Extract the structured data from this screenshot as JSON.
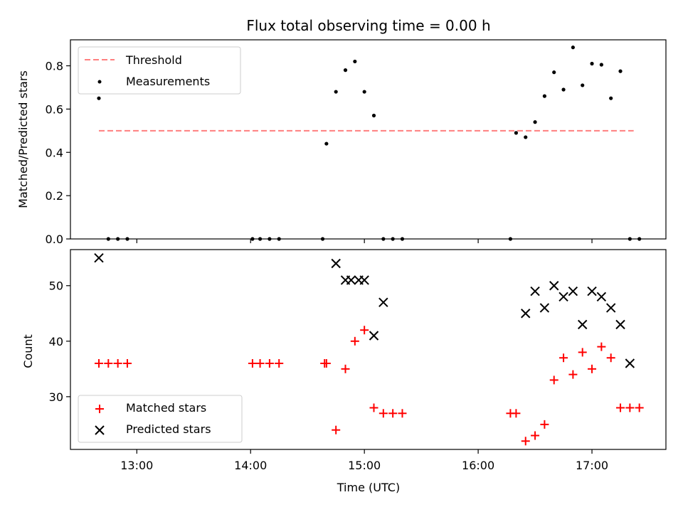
{
  "chart_data": [
    {
      "type": "scatter",
      "title": "Flux total observing time = 0.00 h",
      "ylabel": "Matched/Predicted stars",
      "xlabel": "",
      "xlim": [
        "12:25",
        "17:39"
      ],
      "ylim": [
        0,
        0.92
      ],
      "yticks": [
        0.0,
        0.2,
        0.4,
        0.6,
        0.8
      ],
      "ytick_labels": [
        "0.0",
        "0.2",
        "0.4",
        "0.6",
        "0.8"
      ],
      "xticks": [
        "13:00",
        "14:00",
        "15:00",
        "16:00",
        "17:00"
      ],
      "grid": false,
      "legend_position": "top-left",
      "series": [
        {
          "name": "Threshold",
          "style": "dashed-line",
          "color": "#ff7f7f",
          "x": [
            "12:40",
            "17:22"
          ],
          "y": [
            0.5,
            0.5
          ]
        },
        {
          "name": "Measurements",
          "style": "dot",
          "color": "#000000",
          "x": [
            "12:40",
            "12:45",
            "12:50",
            "12:55",
            "14:01",
            "14:05",
            "14:10",
            "14:15",
            "14:38",
            "14:40",
            "14:45",
            "14:50",
            "14:55",
            "15:00",
            "15:05",
            "15:10",
            "15:15",
            "15:20",
            "16:17",
            "16:20",
            "16:25",
            "16:30",
            "16:35",
            "16:40",
            "16:45",
            "16:50",
            "16:55",
            "17:00",
            "17:05",
            "17:10",
            "17:15",
            "17:20",
            "17:25"
          ],
          "y": [
            0.65,
            0.0,
            0.0,
            0.0,
            0.0,
            0.0,
            0.0,
            0.0,
            0.0,
            0.44,
            0.68,
            0.78,
            0.82,
            0.68,
            0.57,
            0.0,
            0.0,
            0.0,
            0.0,
            0.49,
            0.47,
            0.54,
            0.66,
            0.77,
            0.69,
            0.885,
            0.71,
            0.81,
            0.805,
            0.65,
            0.775,
            0.0,
            0.0
          ]
        }
      ]
    },
    {
      "type": "scatter",
      "title": "",
      "ylabel": "Count",
      "xlabel": "Time (UTC)",
      "xlim": [
        "12:25",
        "17:39"
      ],
      "ylim": [
        20.5,
        56.5
      ],
      "yticks": [
        30,
        40,
        50
      ],
      "ytick_labels": [
        "30",
        "40",
        "50"
      ],
      "xticks": [
        "13:00",
        "14:00",
        "15:00",
        "16:00",
        "17:00"
      ],
      "grid": false,
      "legend_position": "bottom-left",
      "series": [
        {
          "name": "Matched stars",
          "style": "plus",
          "color": "#ff0000",
          "x": [
            "12:40",
            "12:45",
            "12:50",
            "12:55",
            "14:01",
            "14:05",
            "14:10",
            "14:15",
            "14:39",
            "14:40",
            "14:45",
            "14:50",
            "14:55",
            "15:00",
            "15:05",
            "15:10",
            "15:15",
            "15:20",
            "16:17",
            "16:20",
            "16:25",
            "16:30",
            "16:35",
            "16:40",
            "16:45",
            "16:50",
            "16:55",
            "17:00",
            "17:05",
            "17:10",
            "17:15",
            "17:20",
            "17:25"
          ],
          "y": [
            36,
            36,
            36,
            36,
            36,
            36,
            36,
            36,
            36,
            36,
            24,
            35,
            40,
            42,
            28,
            27,
            27,
            27,
            27,
            27,
            22,
            23,
            25,
            33,
            37,
            34,
            38,
            35,
            39,
            37,
            28,
            28,
            28
          ]
        },
        {
          "name": "Predicted stars",
          "style": "x",
          "color": "#000000",
          "x": [
            "12:40",
            "14:45",
            "14:50",
            "14:53",
            "14:57",
            "15:00",
            "15:05",
            "15:10",
            "16:25",
            "16:30",
            "16:35",
            "16:40",
            "16:45",
            "16:50",
            "16:55",
            "17:00",
            "17:05",
            "17:10",
            "17:15",
            "17:20"
          ],
          "y": [
            55,
            54,
            51,
            51,
            51,
            51,
            41,
            47,
            45,
            49,
            46,
            50,
            48,
            49,
            43,
            49,
            48,
            46,
            43,
            36
          ]
        }
      ]
    }
  ]
}
